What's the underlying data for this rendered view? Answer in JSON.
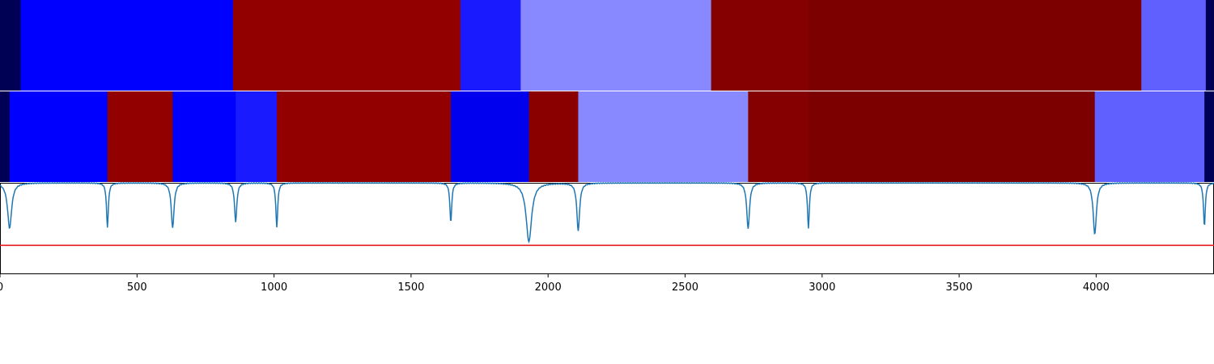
{
  "chart_data": [
    {
      "type": "segments",
      "panel": "top-bar",
      "xlim": [
        0,
        4430
      ],
      "segments": [
        {
          "start": 0,
          "end": 75,
          "color": "#000055"
        },
        {
          "start": 75,
          "end": 850,
          "color": "#0000ff"
        },
        {
          "start": 850,
          "end": 1680,
          "color": "#930000"
        },
        {
          "start": 1680,
          "end": 1900,
          "color": "#1a1aff"
        },
        {
          "start": 1900,
          "end": 2595,
          "color": "#8888ff"
        },
        {
          "start": 2595,
          "end": 2950,
          "color": "#850000"
        },
        {
          "start": 2950,
          "end": 4165,
          "color": "#7c0000"
        },
        {
          "start": 4165,
          "end": 4400,
          "color": "#6060ff"
        },
        {
          "start": 4400,
          "end": 4430,
          "color": "#000055"
        }
      ]
    },
    {
      "type": "segments",
      "panel": "middle-bar",
      "xlim": [
        0,
        4430
      ],
      "segments": [
        {
          "start": 0,
          "end": 35,
          "color": "#000055"
        },
        {
          "start": 35,
          "end": 392,
          "color": "#0000ff"
        },
        {
          "start": 392,
          "end": 630,
          "color": "#930000"
        },
        {
          "start": 630,
          "end": 860,
          "color": "#0000ff"
        },
        {
          "start": 860,
          "end": 1010,
          "color": "#1a1aff"
        },
        {
          "start": 1010,
          "end": 1645,
          "color": "#930000"
        },
        {
          "start": 1645,
          "end": 1930,
          "color": "#0000ee"
        },
        {
          "start": 1930,
          "end": 2110,
          "color": "#8a0000"
        },
        {
          "start": 2110,
          "end": 2730,
          "color": "#8888ff"
        },
        {
          "start": 2730,
          "end": 2950,
          "color": "#850000"
        },
        {
          "start": 2950,
          "end": 3995,
          "color": "#7c0000"
        },
        {
          "start": 3995,
          "end": 4395,
          "color": "#6060ff"
        },
        {
          "start": 4395,
          "end": 4430,
          "color": "#000055"
        }
      ]
    },
    {
      "type": "line",
      "panel": "signal",
      "xlim": [
        0,
        4430
      ],
      "ylim": [
        0,
        1
      ],
      "xticks": [
        "0",
        "500",
        "1000",
        "1500",
        "2000",
        "2500",
        "3000",
        "3500",
        "4000"
      ],
      "xtick_values": [
        0,
        500,
        1000,
        1500,
        2000,
        2500,
        3000,
        3500,
        4000
      ],
      "baseline": 1.0,
      "threshold": 0.31,
      "line_color": "#1f77b4",
      "threshold_color": "#e41a1c",
      "dips": [
        {
          "x": 35,
          "depth": 0.5,
          "width": 9
        },
        {
          "x": 392,
          "depth": 0.49,
          "width": 4
        },
        {
          "x": 630,
          "depth": 0.5,
          "width": 6
        },
        {
          "x": 860,
          "depth": 0.43,
          "width": 5
        },
        {
          "x": 1010,
          "depth": 0.49,
          "width": 4
        },
        {
          "x": 1645,
          "depth": 0.44,
          "width": 4
        },
        {
          "x": 1930,
          "depth": 0.65,
          "width": 12
        },
        {
          "x": 2110,
          "depth": 0.53,
          "width": 6
        },
        {
          "x": 2730,
          "depth": 0.51,
          "width": 6
        },
        {
          "x": 2950,
          "depth": 0.5,
          "width": 4
        },
        {
          "x": 3995,
          "depth": 0.57,
          "width": 7
        },
        {
          "x": 4395,
          "depth": 0.48,
          "width": 4
        }
      ],
      "plateau": {
        "start": 2110,
        "end": 2730,
        "level": 0.99
      }
    }
  ]
}
